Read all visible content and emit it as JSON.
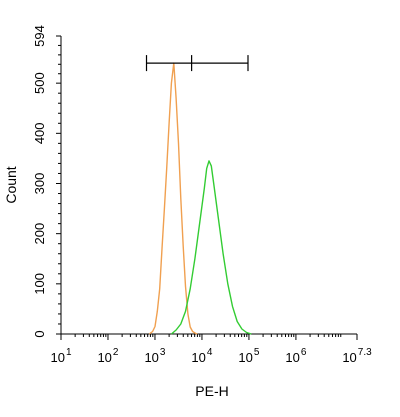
{
  "chart_data": {
    "type": "line",
    "title": "",
    "xlabel": "PE-H",
    "ylabel": "Count",
    "x_scale": "log10",
    "xlim": [
      1,
      7.3
    ],
    "ylim": [
      0,
      594
    ],
    "grid": false,
    "x_ticks": [
      {
        "base": "10",
        "exp": "1",
        "value": 1
      },
      {
        "base": "10",
        "exp": "2",
        "value": 2
      },
      {
        "base": "10",
        "exp": "3",
        "value": 3
      },
      {
        "base": "10",
        "exp": "4",
        "value": 4
      },
      {
        "base": "10",
        "exp": "5",
        "value": 5
      },
      {
        "base": "10",
        "exp": "6",
        "value": 6
      },
      {
        "base": "10",
        "exp": "7.3",
        "value": 7.3
      }
    ],
    "y_ticks": [
      {
        "label": "0",
        "value": 0
      },
      {
        "label": "100",
        "value": 100
      },
      {
        "label": "200",
        "value": 200
      },
      {
        "label": "300",
        "value": 300
      },
      {
        "label": "400",
        "value": 400
      },
      {
        "label": "500",
        "value": 500
      },
      {
        "label": "594",
        "value": 594
      }
    ],
    "series": [
      {
        "color": "#f0a050",
        "x": [
          2.88,
          2.95,
          3.0,
          3.05,
          3.1,
          3.15,
          3.2,
          3.25,
          3.3,
          3.35,
          3.4,
          3.45,
          3.5,
          3.55,
          3.6,
          3.65,
          3.7,
          3.75,
          3.8,
          3.85,
          3.9
        ],
        "y": [
          0,
          5,
          15,
          45,
          90,
          170,
          250,
          330,
          420,
          500,
          540,
          470,
          380,
          270,
          175,
          95,
          40,
          14,
          5,
          2,
          0
        ]
      },
      {
        "color": "#33cc33",
        "x": [
          3.35,
          3.45,
          3.55,
          3.65,
          3.75,
          3.85,
          3.95,
          4.05,
          4.1,
          4.15,
          4.2,
          4.25,
          4.35,
          4.45,
          4.55,
          4.65,
          4.75,
          4.85,
          4.95,
          5.05
        ],
        "y": [
          0,
          8,
          20,
          45,
          90,
          150,
          220,
          290,
          330,
          345,
          335,
          300,
          230,
          160,
          100,
          55,
          25,
          10,
          3,
          0
        ]
      }
    ],
    "markers": [
      {
        "type": "range",
        "x_start": 2.82,
        "x_mid": 3.78,
        "x_end": 4.98,
        "y": 540
      }
    ]
  }
}
